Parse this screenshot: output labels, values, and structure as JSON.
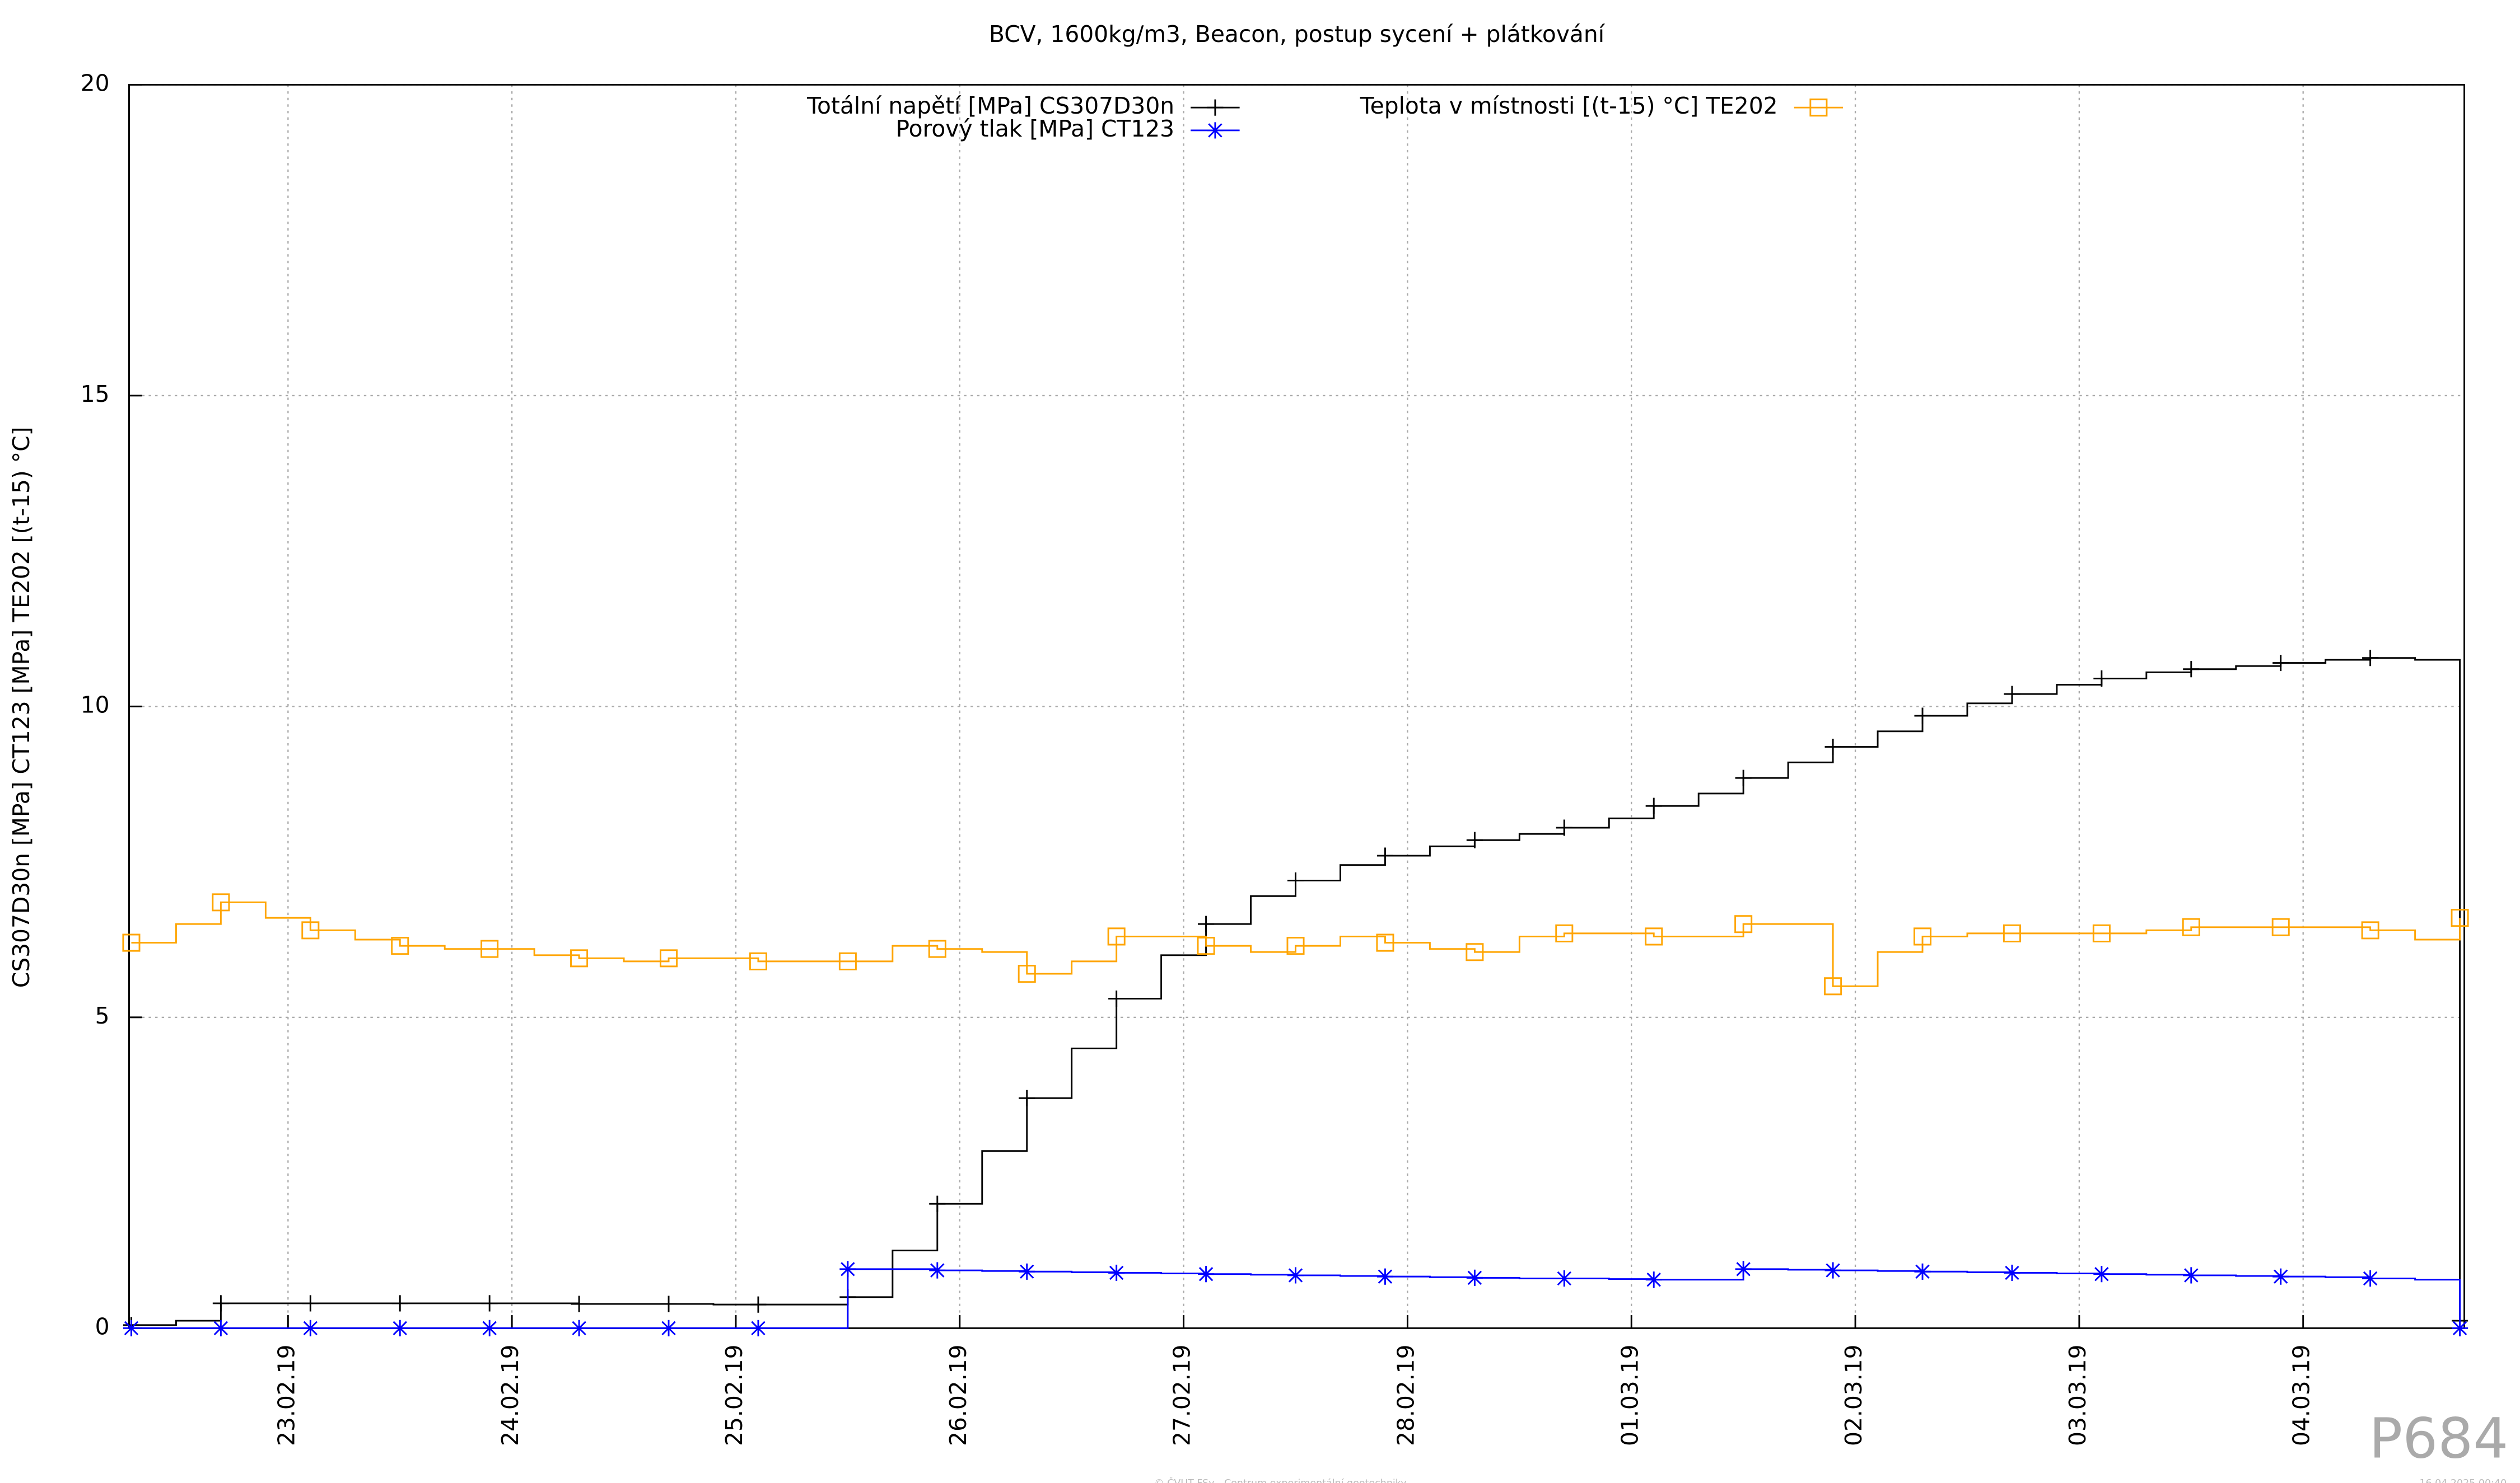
{
  "chart_data": {
    "type": "line",
    "title": "BCV, 1600kg/m3, Beacon, postup sycení + plátkování",
    "y_label": "CS307D30n [MPa] CT123 [MPa] TE202 [(t-15) °C]",
    "watermark": "P684",
    "footer": "© ČVUT FSv - Centrum experimentální geotechniky",
    "timestamp": "16.04.2025 00:40",
    "x": [
      0.3,
      0.5,
      0.7,
      0.9,
      1.1,
      1.3,
      1.5,
      1.7,
      1.9,
      2.1,
      2.3,
      2.5,
      2.7,
      2.9,
      3.1,
      3.3,
      3.5,
      3.7,
      3.9,
      4.1,
      4.3,
      4.5,
      4.7,
      4.9,
      5.1,
      5.3,
      5.5,
      5.7,
      5.9,
      6.1,
      6.3,
      6.5,
      6.7,
      6.9,
      7.1,
      7.3,
      7.5,
      7.7,
      7.9,
      8.1,
      8.3,
      8.5,
      8.7,
      8.9,
      9.1,
      9.3,
      9.5,
      9.7,
      9.9,
      10.1,
      10.3,
      10.5,
      10.7
    ],
    "series": [
      {
        "name": "Totální napětí [MPa] CS307D30n",
        "color": "#000000",
        "marker": "plus",
        "values": [
          0.05,
          0.12,
          0.4,
          0.4,
          0.4,
          0.4,
          0.4,
          0.4,
          0.4,
          0.4,
          0.39,
          0.39,
          0.39,
          0.38,
          0.38,
          0.38,
          0.5,
          1.25,
          2.0,
          2.85,
          3.7,
          4.5,
          5.3,
          6.0,
          6.5,
          6.95,
          7.2,
          7.45,
          7.6,
          7.75,
          7.85,
          7.95,
          8.05,
          8.2,
          8.4,
          8.6,
          8.85,
          9.1,
          9.35,
          9.6,
          9.85,
          10.05,
          10.2,
          10.35,
          10.45,
          10.55,
          10.6,
          10.65,
          10.7,
          10.75,
          10.78,
          10.75,
          0.12
        ]
      },
      {
        "name": "Porový tlak [MPa] CT123",
        "color": "#0000ff",
        "marker": "star",
        "values": [
          0,
          0,
          0,
          0,
          0,
          0,
          0,
          0,
          0,
          0,
          0,
          0,
          0,
          0,
          0,
          0,
          0.95,
          0.95,
          0.93,
          0.92,
          0.91,
          0.9,
          0.89,
          0.88,
          0.87,
          0.86,
          0.85,
          0.84,
          0.83,
          0.82,
          0.81,
          0.8,
          0.8,
          0.79,
          0.78,
          0.78,
          0.95,
          0.94,
          0.93,
          0.92,
          0.91,
          0.9,
          0.89,
          0.88,
          0.87,
          0.86,
          0.85,
          0.84,
          0.83,
          0.82,
          0.8,
          0.78,
          0
        ]
      },
      {
        "name": "Teplota v místnosti [(t-15) °C] TE202",
        "color": "#ffa500",
        "marker": "square",
        "values": [
          6.2,
          6.5,
          6.85,
          6.6,
          6.4,
          6.25,
          6.15,
          6.1,
          6.1,
          6.0,
          5.95,
          5.9,
          5.95,
          5.95,
          5.9,
          5.9,
          5.9,
          6.15,
          6.1,
          6.05,
          5.7,
          5.9,
          6.3,
          6.3,
          6.15,
          6.05,
          6.15,
          6.3,
          6.2,
          6.1,
          6.05,
          6.3,
          6.35,
          6.35,
          6.3,
          6.3,
          6.5,
          6.5,
          5.5,
          6.05,
          6.3,
          6.35,
          6.35,
          6.35,
          6.35,
          6.4,
          6.45,
          6.45,
          6.45,
          6.45,
          6.4,
          6.25,
          6.6
        ]
      }
    ],
    "xlim": [
      0.29,
      10.72
    ],
    "xticks": [
      {
        "value": 1,
        "label": "23.02.19"
      },
      {
        "value": 2,
        "label": "24.02.19"
      },
      {
        "value": 3,
        "label": "25.02.19"
      },
      {
        "value": 4,
        "label": "26.02.19"
      },
      {
        "value": 5,
        "label": "27.02.19"
      },
      {
        "value": 6,
        "label": "28.02.19"
      },
      {
        "value": 7,
        "label": "01.03.19"
      },
      {
        "value": 8,
        "label": "02.03.19"
      },
      {
        "value": 9,
        "label": "03.03.19"
      },
      {
        "value": 10,
        "label": "04.03.19"
      }
    ],
    "ylim": [
      0,
      20
    ],
    "yticks": [
      0,
      5,
      10,
      15,
      20
    ],
    "grid": true,
    "legend": "top"
  }
}
